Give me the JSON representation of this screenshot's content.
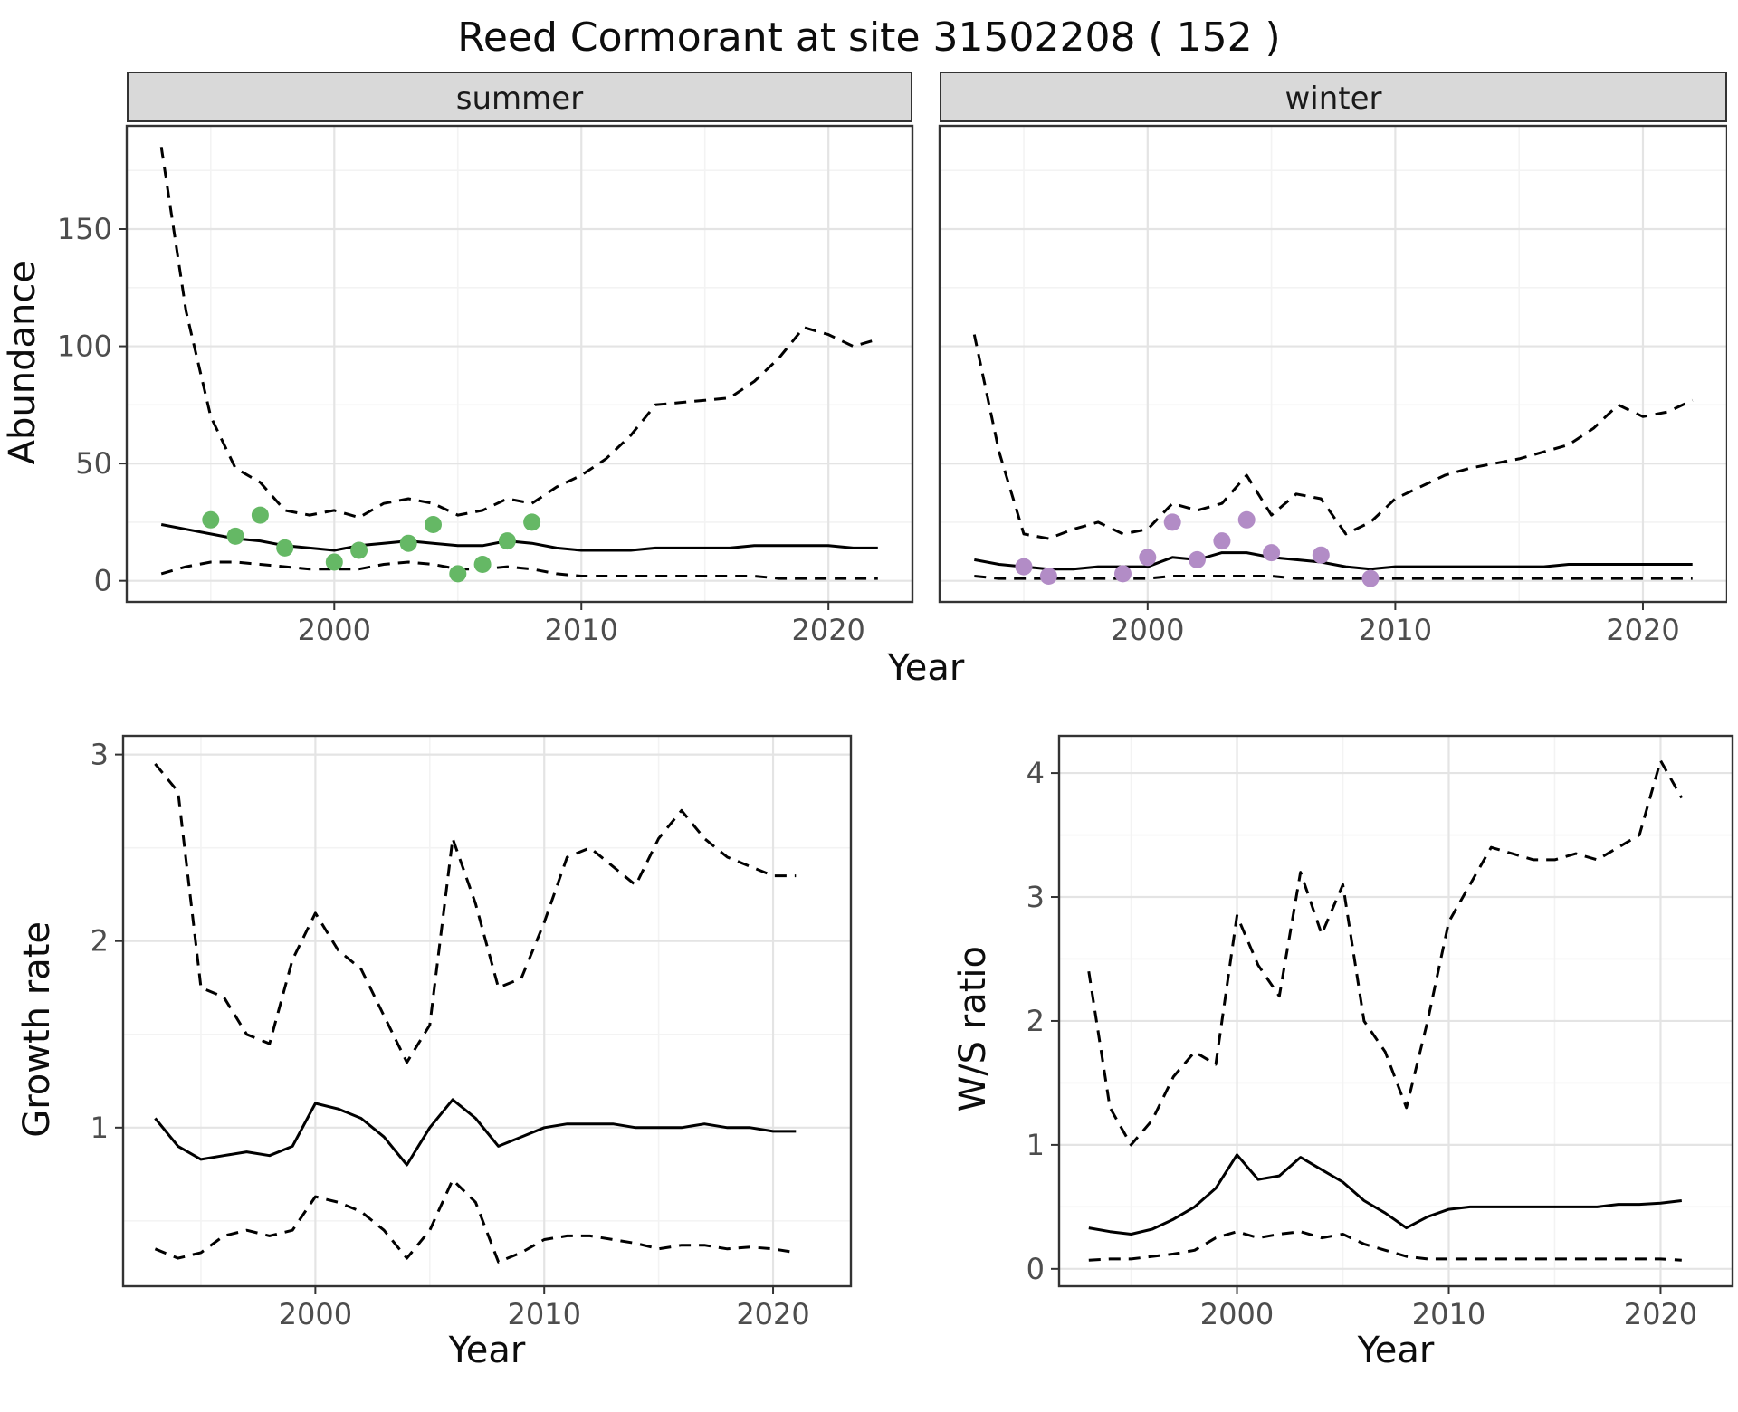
{
  "title": "Reed Cormorant at site 31502208 ( 152 )",
  "colors": {
    "line": "#000000",
    "summer_points": "#65b865",
    "winter_points": "#b28cc6",
    "panel_border": "#333333",
    "strip_bg": "#d9d9d9",
    "grid_major": "#e4e4e4",
    "grid_minor": "#f3f3f3",
    "tick_text": "#4d4d4d"
  },
  "chart_data": [
    {
      "id": "abundance_summer",
      "type": "line",
      "facet": "summer",
      "xlabel": "Year",
      "ylabel": "Abundance",
      "xlim": [
        1991.6,
        2023.4
      ],
      "ylim": [
        -9,
        194
      ],
      "xticks": [
        2000,
        2010,
        2020
      ],
      "xminor": [
        1995,
        2005,
        2015
      ],
      "yticks": [
        0,
        50,
        100,
        150
      ],
      "yminor": [
        25,
        75,
        125,
        175
      ],
      "x": [
        1993,
        1994,
        1995,
        1996,
        1997,
        1998,
        1999,
        2000,
        2001,
        2002,
        2003,
        2004,
        2005,
        2006,
        2007,
        2008,
        2009,
        2010,
        2011,
        2012,
        2013,
        2014,
        2015,
        2016,
        2017,
        2018,
        2019,
        2020,
        2021,
        2022
      ],
      "series": [
        {
          "name": "upper_ci",
          "style": "dashed",
          "y": [
            185,
            115,
            70,
            48,
            42,
            30,
            28,
            30,
            27,
            33,
            35,
            33,
            28,
            30,
            35,
            33,
            40,
            45,
            52,
            62,
            75,
            76,
            77,
            78,
            85,
            95,
            108,
            105,
            100,
            103
          ]
        },
        {
          "name": "estimate",
          "style": "solid",
          "y": [
            24,
            22,
            20,
            18,
            17,
            15,
            14,
            13,
            15,
            16,
            17,
            16,
            15,
            15,
            17,
            16,
            14,
            13,
            13,
            13,
            14,
            14,
            14,
            14,
            15,
            15,
            15,
            15,
            14,
            14
          ]
        },
        {
          "name": "lower_ci",
          "style": "dashed",
          "y": [
            3,
            6,
            8,
            8,
            7,
            6,
            5,
            5,
            5,
            7,
            8,
            7,
            5,
            5,
            6,
            5,
            3,
            2,
            2,
            2,
            2,
            2,
            2,
            2,
            2,
            1,
            1,
            1,
            1,
            1
          ]
        }
      ],
      "points": {
        "name": "observed_counts",
        "color_key": "summer_points",
        "x": [
          1995,
          1996,
          1997,
          1998,
          2000,
          2001,
          2003,
          2004,
          2005,
          2006,
          2007,
          2008
        ],
        "y": [
          26,
          19,
          28,
          14,
          8,
          13,
          16,
          24,
          3,
          7,
          17,
          25
        ]
      }
    },
    {
      "id": "abundance_winter",
      "type": "line",
      "facet": "winter",
      "xlabel": "Year",
      "ylabel": "Abundance",
      "xlim": [
        1991.6,
        2023.4
      ],
      "ylim": [
        -9,
        194
      ],
      "xticks": [
        2000,
        2010,
        2020
      ],
      "xminor": [
        1995,
        2005,
        2015
      ],
      "yticks": [
        0,
        50,
        100,
        150
      ],
      "yminor": [
        25,
        75,
        125,
        175
      ],
      "x": [
        1993,
        1994,
        1995,
        1996,
        1997,
        1998,
        1999,
        2000,
        2001,
        2002,
        2003,
        2004,
        2005,
        2006,
        2007,
        2008,
        2009,
        2010,
        2011,
        2012,
        2013,
        2014,
        2015,
        2016,
        2017,
        2018,
        2019,
        2020,
        2021,
        2022
      ],
      "series": [
        {
          "name": "upper_ci",
          "style": "dashed",
          "y": [
            105,
            55,
            20,
            18,
            22,
            25,
            20,
            22,
            33,
            30,
            33,
            45,
            28,
            37,
            35,
            20,
            25,
            35,
            40,
            45,
            48,
            50,
            52,
            55,
            58,
            65,
            75,
            70,
            72,
            77
          ]
        },
        {
          "name": "estimate",
          "style": "solid",
          "y": [
            9,
            7,
            6,
            5,
            5,
            6,
            6,
            6,
            10,
            9,
            12,
            12,
            10,
            9,
            8,
            6,
            5,
            6,
            6,
            6,
            6,
            6,
            6,
            6,
            7,
            7,
            7,
            7,
            7,
            7
          ]
        },
        {
          "name": "lower_ci",
          "style": "dashed",
          "y": [
            2,
            1,
            1,
            1,
            1,
            1,
            1,
            1,
            2,
            2,
            2,
            2,
            2,
            1,
            1,
            1,
            1,
            1,
            1,
            1,
            1,
            1,
            1,
            1,
            1,
            1,
            1,
            1,
            1,
            1
          ]
        }
      ],
      "points": {
        "name": "observed_counts",
        "color_key": "winter_points",
        "x": [
          1995,
          1996,
          1999,
          2000,
          2001,
          2002,
          2003,
          2004,
          2005,
          2007,
          2009
        ],
        "y": [
          6,
          2,
          3,
          10,
          25,
          9,
          17,
          26,
          12,
          11,
          1
        ]
      }
    },
    {
      "id": "growth_rate",
      "type": "line",
      "facet": null,
      "xlabel": "Year",
      "ylabel": "Growth rate",
      "xlim": [
        1991.6,
        2023.4
      ],
      "ylim": [
        0.15,
        3.1
      ],
      "xticks": [
        2000,
        2010,
        2020
      ],
      "xminor": [
        1995,
        2005,
        2015
      ],
      "yticks": [
        1,
        2,
        3
      ],
      "yminor": [
        0.5,
        1.5,
        2.5
      ],
      "x": [
        1993,
        1994,
        1995,
        1996,
        1997,
        1998,
        1999,
        2000,
        2001,
        2002,
        2003,
        2004,
        2005,
        2006,
        2007,
        2008,
        2009,
        2010,
        2011,
        2012,
        2013,
        2014,
        2015,
        2016,
        2017,
        2018,
        2019,
        2020,
        2021
      ],
      "series": [
        {
          "name": "upper_ci",
          "style": "dashed",
          "y": [
            2.95,
            2.8,
            1.75,
            1.7,
            1.5,
            1.45,
            1.9,
            2.15,
            1.95,
            1.85,
            1.6,
            1.35,
            1.55,
            2.55,
            2.2,
            1.75,
            1.8,
            2.1,
            2.45,
            2.5,
            2.4,
            2.3,
            2.55,
            2.7,
            2.55,
            2.45,
            2.4,
            2.35,
            2.35
          ]
        },
        {
          "name": "estimate",
          "style": "solid",
          "y": [
            1.05,
            0.9,
            0.83,
            0.85,
            0.87,
            0.85,
            0.9,
            1.13,
            1.1,
            1.05,
            0.95,
            0.8,
            1.0,
            1.15,
            1.05,
            0.9,
            0.95,
            1.0,
            1.02,
            1.02,
            1.02,
            1.0,
            1.0,
            1.0,
            1.02,
            1.0,
            1.0,
            0.98,
            0.98
          ]
        },
        {
          "name": "lower_ci",
          "style": "dashed",
          "y": [
            0.35,
            0.3,
            0.33,
            0.42,
            0.45,
            0.42,
            0.45,
            0.63,
            0.6,
            0.55,
            0.45,
            0.3,
            0.45,
            0.72,
            0.6,
            0.28,
            0.33,
            0.4,
            0.42,
            0.42,
            0.4,
            0.38,
            0.35,
            0.37,
            0.37,
            0.35,
            0.36,
            0.35,
            0.33
          ]
        }
      ]
    },
    {
      "id": "ws_ratio",
      "type": "line",
      "facet": null,
      "xlabel": "Year",
      "ylabel": "W/S ratio",
      "xlim": [
        1991.6,
        2023.4
      ],
      "ylim": [
        -0.14,
        4.3
      ],
      "xticks": [
        2000,
        2010,
        2020
      ],
      "xminor": [
        1995,
        2005,
        2015
      ],
      "yticks": [
        0,
        1,
        2,
        3,
        4
      ],
      "yminor": [
        0.5,
        1.5,
        2.5,
        3.5
      ],
      "x": [
        1993,
        1994,
        1995,
        1996,
        1997,
        1998,
        1999,
        2000,
        2001,
        2002,
        2003,
        2004,
        2005,
        2006,
        2007,
        2008,
        2009,
        2010,
        2011,
        2012,
        2013,
        2014,
        2015,
        2016,
        2017,
        2018,
        2019,
        2020,
        2021
      ],
      "series": [
        {
          "name": "upper_ci",
          "style": "dashed",
          "y": [
            2.4,
            1.3,
            1.0,
            1.2,
            1.55,
            1.75,
            1.65,
            2.85,
            2.45,
            2.2,
            3.2,
            2.7,
            3.1,
            2.0,
            1.75,
            1.3,
            2.0,
            2.8,
            3.1,
            3.4,
            3.35,
            3.3,
            3.3,
            3.35,
            3.3,
            3.4,
            3.5,
            4.1,
            3.8
          ]
        },
        {
          "name": "estimate",
          "style": "solid",
          "y": [
            0.33,
            0.3,
            0.28,
            0.32,
            0.4,
            0.5,
            0.65,
            0.92,
            0.72,
            0.75,
            0.9,
            0.8,
            0.7,
            0.55,
            0.45,
            0.33,
            0.42,
            0.48,
            0.5,
            0.5,
            0.5,
            0.5,
            0.5,
            0.5,
            0.5,
            0.52,
            0.52,
            0.53,
            0.55
          ]
        },
        {
          "name": "lower_ci",
          "style": "dashed",
          "y": [
            0.07,
            0.08,
            0.08,
            0.1,
            0.12,
            0.15,
            0.25,
            0.3,
            0.25,
            0.28,
            0.3,
            0.25,
            0.28,
            0.2,
            0.15,
            0.1,
            0.08,
            0.08,
            0.08,
            0.08,
            0.08,
            0.08,
            0.08,
            0.08,
            0.08,
            0.08,
            0.08,
            0.08,
            0.07
          ]
        }
      ]
    }
  ]
}
